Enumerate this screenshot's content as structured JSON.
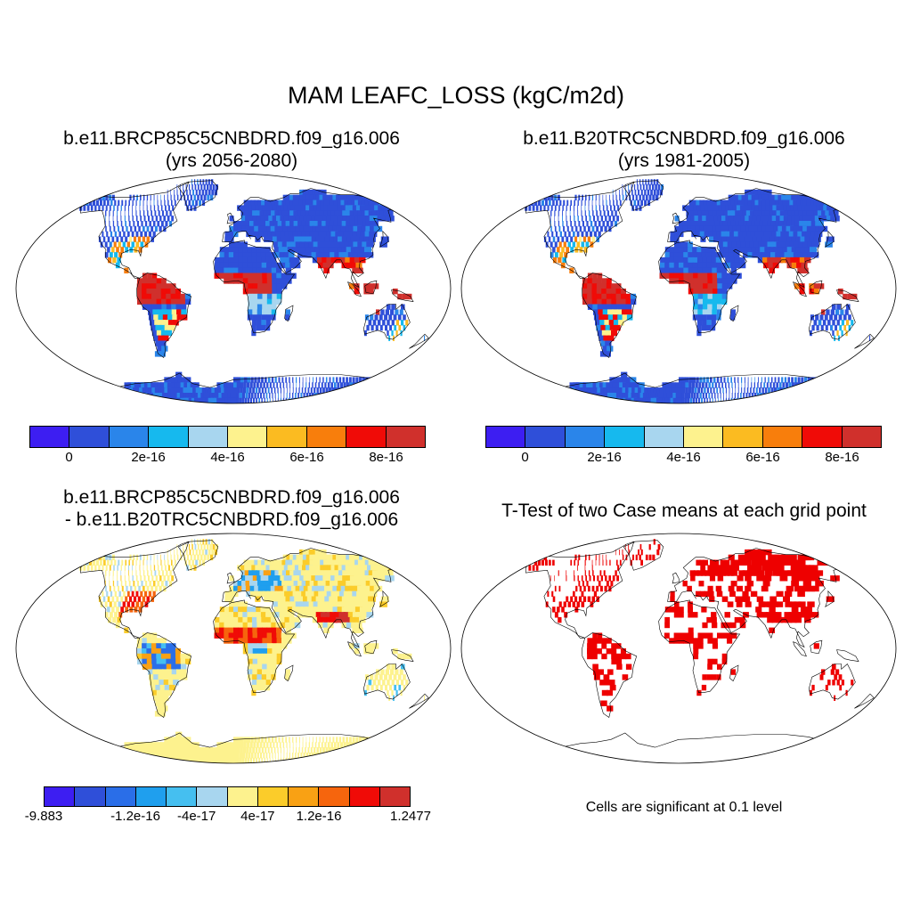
{
  "title": "MAM LEAFC_LOSS (kgC/m2d)",
  "chart_data": [
    {
      "type": "heatmap",
      "title_line1": "b.e11.BRCP85C5CNBDRD.f09_g16.006",
      "title_line2": "(yrs 2056-2080)",
      "projection": "robinson",
      "colorbar": {
        "colors": [
          "#3d1ef2",
          "#2f4fd9",
          "#2a85ea",
          "#16b9ee",
          "#a8d6ef",
          "#fdf28e",
          "#fbbb21",
          "#f87e0c",
          "#f00b07",
          "#d0302c"
        ],
        "tick_labels": [
          "0",
          "2e-16",
          "4e-16",
          "6e-16",
          "8e-16"
        ],
        "tick_boundaries": [
          1,
          3,
          5,
          7,
          9
        ]
      }
    },
    {
      "type": "heatmap",
      "title_line1": "b.e11.B20TRC5CNBDRD.f09_g16.006",
      "title_line2": "(yrs 1981-2005)",
      "projection": "robinson",
      "colorbar": {
        "colors": [
          "#3d1ef2",
          "#2f4fd9",
          "#2a85ea",
          "#16b9ee",
          "#a8d6ef",
          "#fdf28e",
          "#fbbb21",
          "#f87e0c",
          "#f00b07",
          "#d0302c"
        ],
        "tick_labels": [
          "0",
          "2e-16",
          "4e-16",
          "6e-16",
          "8e-16"
        ],
        "tick_boundaries": [
          1,
          3,
          5,
          7,
          9
        ]
      }
    },
    {
      "type": "heatmap",
      "title_line1": "b.e11.BRCP85C5CNBDRD.f09_g16.006",
      "title_line2": "- b.e11.B20TRC5CNBDRD.f09_g16.006",
      "projection": "robinson",
      "colorbar": {
        "colors": [
          "#3d1ef2",
          "#2f4fd9",
          "#2a6ee8",
          "#1f9fee",
          "#45bff0",
          "#a8d6ef",
          "#fdf28e",
          "#fbcc2a",
          "#f9a114",
          "#f6650d",
          "#f00b07",
          "#d0302c"
        ],
        "tick_labels": [
          "-9.883",
          "-1.2e-16",
          "-4e-17",
          "4e-17",
          "1.2e-16",
          "1.2477"
        ],
        "tick_boundaries": [
          0,
          3,
          5,
          7,
          9,
          12
        ]
      }
    },
    {
      "type": "heatmap",
      "title_line1": "T-Test of two Case means at each grid point",
      "projection": "robinson",
      "significance_color": "#ee0000",
      "note": "Cells are significant at 0.1 level"
    }
  ]
}
